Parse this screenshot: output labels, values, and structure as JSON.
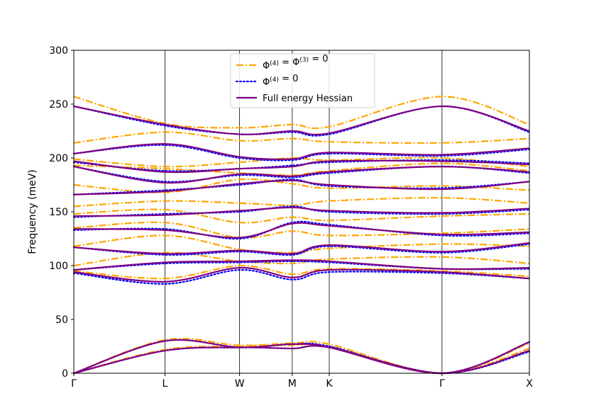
{
  "chart_data": {
    "type": "line",
    "title": "",
    "xlabel": "",
    "ylabel": "Frequency (meV)",
    "ylim": [
      0,
      300
    ],
    "yticks": [
      "0",
      "50",
      "100",
      "150",
      "200",
      "250",
      "300"
    ],
    "high_symmetry_points": [
      {
        "label": "Γ",
        "x": 0.0
      },
      {
        "label": "L",
        "x": 0.2
      },
      {
        "label": "W",
        "x": 0.3639
      },
      {
        "label": "M",
        "x": 0.4795
      },
      {
        "label": "K",
        "x": 0.5607
      },
      {
        "label": "Γ",
        "x": 0.8082
      },
      {
        "label": "X",
        "x": 1.0
      }
    ],
    "grid": "vertical lines at high-symmetry points",
    "legend_position": "top-center",
    "series": [
      {
        "name_parts": {
          "a": "Φ",
          "a_sup": "(4)",
          "mid": " = Φ",
          "mid_sup": "(3)",
          "end": " = 0"
        },
        "color": "#ffa500",
        "style": "dashdot",
        "bands_note": "selected bands",
        "x": [
          0,
          0.2,
          0.3639,
          0.4795,
          0.5607,
          0.8082,
          1.0
        ],
        "bands": [
          [
            0,
            31,
            26,
            28,
            27,
            0,
            28
          ],
          [
            0,
            22,
            25,
            26,
            25,
            0,
            23
          ],
          [
            95,
            88,
            100,
            92,
            97,
            95,
            90
          ],
          [
            100,
            112,
            104,
            102,
            106,
            108,
            102
          ],
          [
            118,
            128,
            115,
            112,
            116,
            120,
            118
          ],
          [
            135,
            140,
            126,
            132,
            128,
            130,
            134
          ],
          [
            148,
            152,
            140,
            145,
            142,
            146,
            148
          ],
          [
            155,
            160,
            158,
            156,
            160,
            163,
            158
          ],
          [
            175,
            168,
            180,
            176,
            172,
            174,
            170
          ],
          [
            193,
            190,
            186,
            184,
            188,
            195,
            188
          ],
          [
            199,
            192,
            196,
            200,
            198,
            200,
            192
          ],
          [
            214,
            224,
            216,
            218,
            215,
            214,
            218
          ],
          [
            257,
            232,
            228,
            231,
            229,
            257,
            231
          ]
        ]
      },
      {
        "name_parts": {
          "a": "Φ",
          "a_sup": "(4)",
          "mid": " = 0",
          "mid_sup": "",
          "end": ""
        },
        "color": "#0000ff",
        "style": "dotted",
        "bands_note": "selected bands",
        "x": [
          0,
          0.2,
          0.3639,
          0.4795,
          0.5607,
          0.8082,
          1.0
        ],
        "bands": [
          [
            0,
            30,
            24,
            27,
            25,
            0,
            29
          ],
          [
            0,
            21,
            24,
            23,
            24,
            0,
            20
          ],
          [
            93,
            83,
            96,
            87,
            94,
            93,
            88
          ],
          [
            96,
            102,
            103,
            104,
            103,
            97,
            97
          ],
          [
            117,
            110,
            113,
            110,
            118,
            112,
            120
          ],
          [
            133,
            134,
            125,
            140,
            138,
            128,
            130
          ],
          [
            145,
            148,
            150,
            155,
            150,
            148,
            152
          ],
          [
            166,
            170,
            175,
            180,
            174,
            172,
            178
          ],
          [
            192,
            178,
            184,
            182,
            186,
            192,
            186
          ],
          [
            196,
            188,
            190,
            193,
            196,
            198,
            195
          ],
          [
            204,
            212,
            200,
            198,
            204,
            202,
            208
          ],
          [
            248,
            230,
            222,
            224,
            222,
            248,
            224
          ]
        ]
      },
      {
        "name": "Full energy Hessian",
        "color": "#800080",
        "style": "solid",
        "bands_note": "selected bands",
        "x": [
          0,
          0.2,
          0.3639,
          0.4795,
          0.5607,
          0.8082,
          1.0
        ],
        "bands": [
          [
            0,
            30,
            24,
            27,
            24,
            0,
            29
          ],
          [
            0,
            21,
            24,
            23,
            24,
            0,
            21
          ],
          [
            94,
            85,
            98,
            89,
            96,
            94,
            88
          ],
          [
            96,
            103,
            104,
            105,
            104,
            97,
            98
          ],
          [
            117,
            111,
            114,
            111,
            119,
            113,
            121
          ],
          [
            134,
            133,
            126,
            139,
            137,
            129,
            131
          ],
          [
            146,
            147,
            151,
            154,
            151,
            149,
            153
          ],
          [
            166,
            169,
            176,
            179,
            175,
            171,
            178
          ],
          [
            192,
            177,
            185,
            183,
            187,
            192,
            187
          ],
          [
            197,
            187,
            190,
            192,
            197,
            197,
            194
          ],
          [
            204,
            213,
            201,
            199,
            205,
            203,
            209
          ],
          [
            248,
            231,
            222,
            225,
            223,
            248,
            225
          ]
        ]
      }
    ]
  }
}
